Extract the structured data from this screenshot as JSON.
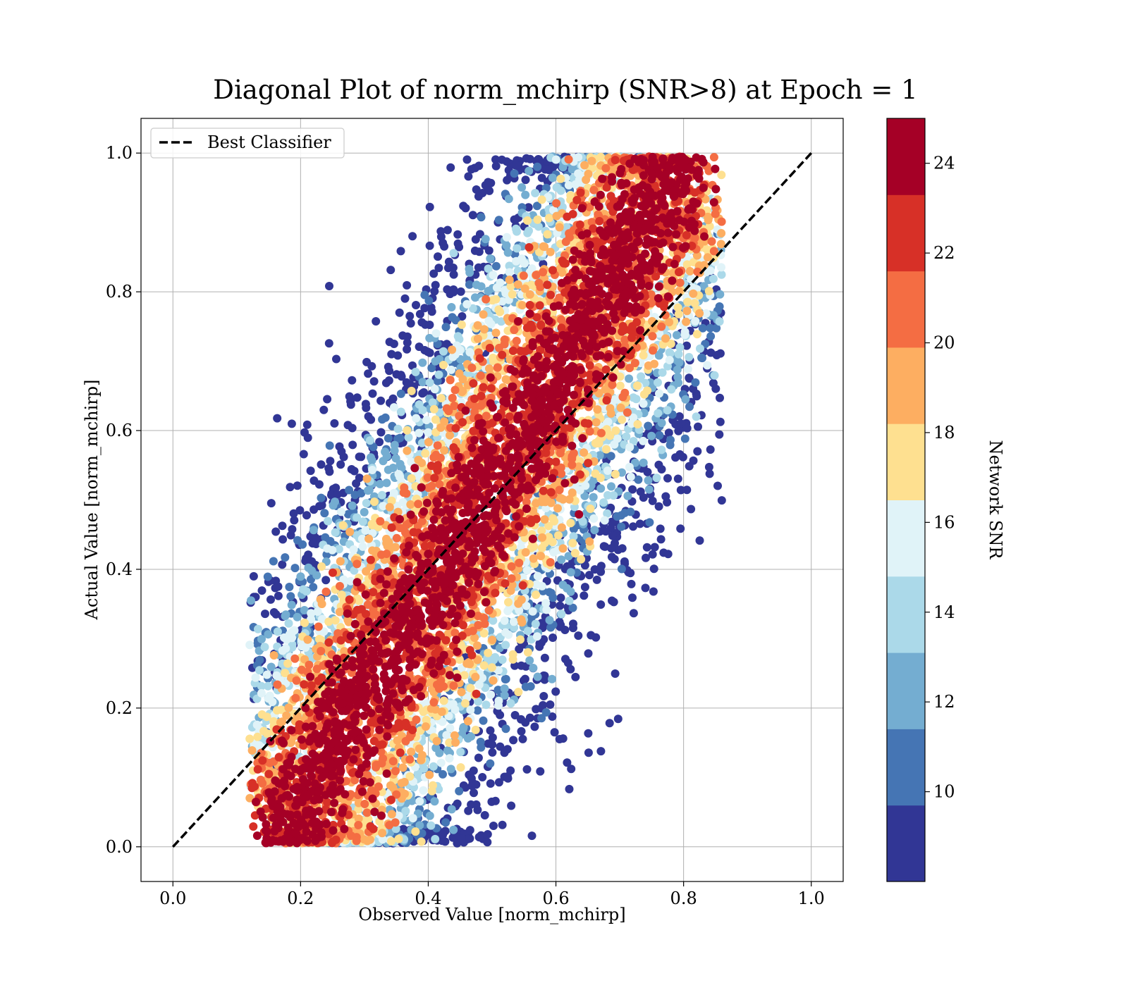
{
  "chart_data": {
    "type": "scatter",
    "title": "Diagonal Plot of norm_mchirp (SNR>8) at Epoch = 1",
    "xlabel": "Observed Value [norm_mchirp]",
    "ylabel": "Actual Value [norm_mchirp]",
    "xlim": [
      -0.05,
      1.05
    ],
    "ylim": [
      -0.05,
      1.05
    ],
    "xticks": [
      0.0,
      0.2,
      0.4,
      0.6,
      0.8,
      1.0
    ],
    "xtick_labels": [
      "0.0",
      "0.2",
      "0.4",
      "0.6",
      "0.8",
      "1.0"
    ],
    "yticks": [
      0.0,
      0.2,
      0.4,
      0.6,
      0.8,
      1.0
    ],
    "ytick_labels": [
      "0.0",
      "0.2",
      "0.4",
      "0.6",
      "0.8",
      "1.0"
    ],
    "grid": true,
    "legend": {
      "placement": "top-left",
      "entries": [
        {
          "label": "Best Classifier",
          "style": "dashed",
          "color": "#000000"
        }
      ]
    },
    "reference_line": {
      "name": "Best Classifier",
      "x": [
        0.0,
        1.0
      ],
      "y": [
        0.0,
        1.0
      ],
      "color": "#000000",
      "dash": true
    },
    "scatter": {
      "color_variable": "Network SNR",
      "point_count_approx": 40000,
      "distribution": {
        "x_range_approx": [
          0.12,
          0.86
        ],
        "y_range_approx": [
          0.0,
          1.0
        ],
        "spread_along_diagonal": "high SNR (dark red) tightly around the diagonal; lower SNR (blue/yellow) points mostly on the outer edges, above-left at high values and below-right at low values"
      }
    },
    "colorbar": {
      "label": "Network SNR",
      "min": 8,
      "max": 25,
      "boundaries": [
        8,
        9.7,
        11.4,
        13.1,
        14.8,
        16.5,
        18.2,
        19.9,
        21.6,
        23.3,
        25
      ],
      "colors": [
        "#313695",
        "#4575b4",
        "#74add1",
        "#abd9e9",
        "#e0f3f8",
        "#fee090",
        "#fdae61",
        "#f46d43",
        "#d73027",
        "#a50026"
      ],
      "ticks": [
        10,
        12,
        14,
        16,
        18,
        20,
        22,
        24
      ],
      "tick_labels": [
        "10",
        "12",
        "14",
        "16",
        "18",
        "20",
        "22",
        "24"
      ]
    }
  }
}
